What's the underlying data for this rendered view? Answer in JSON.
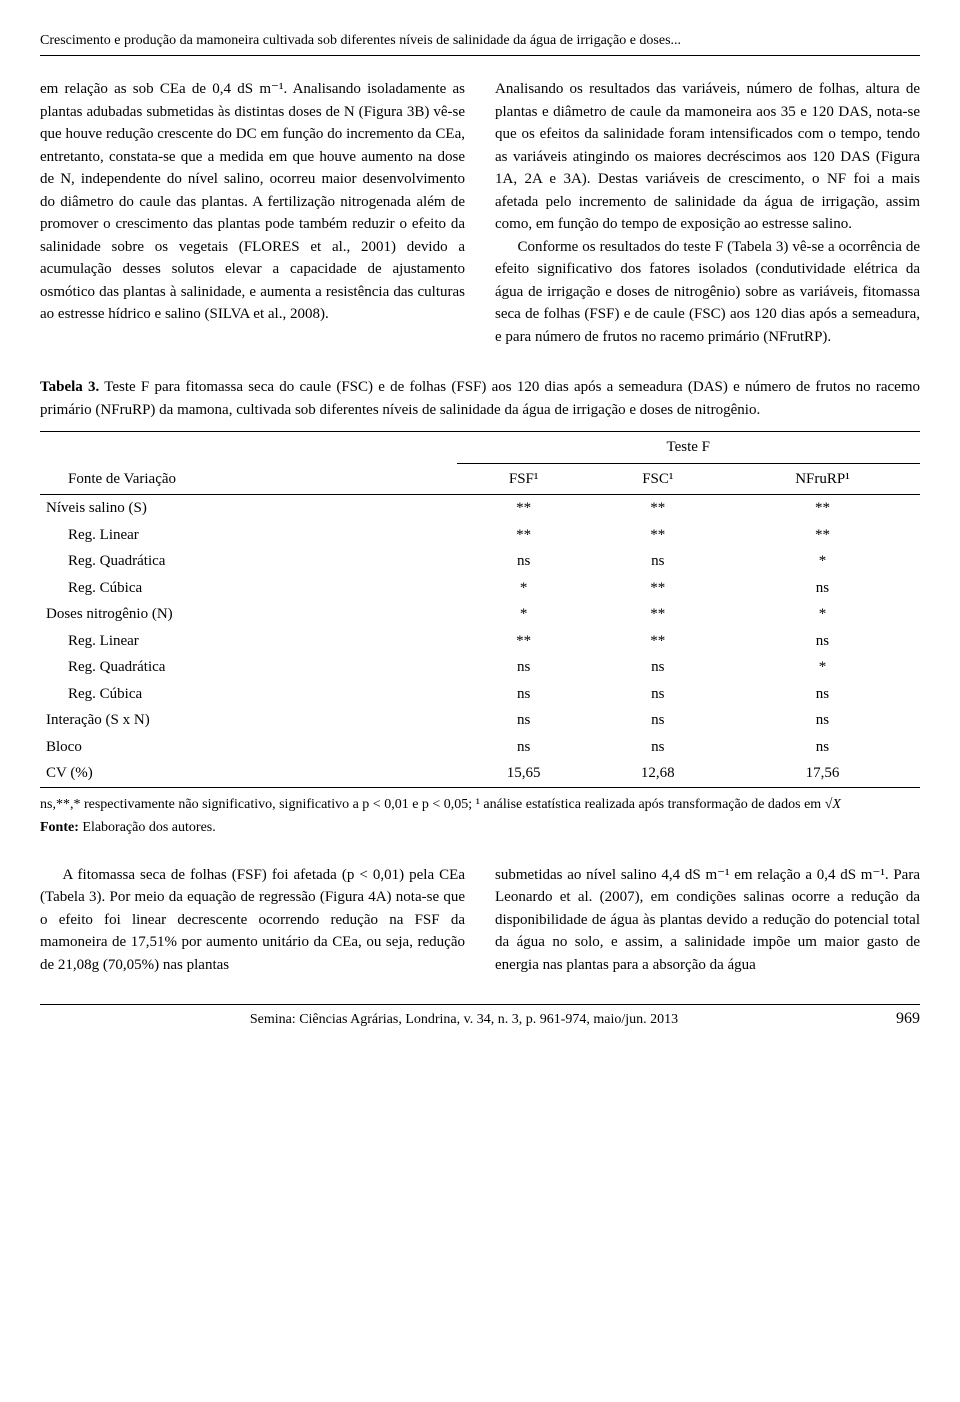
{
  "running_header": "Crescimento e produção da mamoneira cultivada sob diferentes níveis de salinidade da água de irrigação e doses...",
  "columns": {
    "left": {
      "p1": "em relação as sob CEa de 0,4 dS m⁻¹. Analisando isoladamente as plantas adubadas submetidas às distintas doses de N (Figura 3B) vê-se que houve redução crescente do DC em função do incremento da CEa, entretanto, constata-se que a medida em que houve aumento na dose de N, independente do nível salino, ocorreu maior desenvolvimento do diâmetro do caule das plantas. A fertilização nitrogenada além de promover o crescimento das plantas pode também reduzir o efeito da salinidade sobre os vegetais (FLORES et al., 2001) devido a acumulação desses solutos elevar a capacidade de ajustamento osmótico das plantas à salinidade, e aumenta a resistência das culturas ao estresse hídrico e salino (SILVA et al., 2008)."
    },
    "right": {
      "p1": "Analisando os resultados das variáveis, número de folhas, altura de plantas e diâmetro de caule da mamoneira aos 35 e 120 DAS, nota-se que os efeitos da salinidade foram intensificados com o tempo, tendo as variáveis atingindo os maiores decréscimos aos 120 DAS (Figura 1A, 2A e 3A). Destas variáveis de crescimento, o NF foi a mais afetada pelo incremento de salinidade da água de irrigação, assim como, em função do tempo de exposição ao estresse salino.",
      "p2": "Conforme os resultados do teste F (Tabela 3) vê-se a ocorrência de efeito significativo dos fatores isolados (condutividade elétrica da água de irrigação e doses de nitrogênio) sobre as variáveis, fitomassa seca de folhas (FSF) e de caule (FSC) aos 120 dias após a semeadura, e para número de frutos no racemo primário (NFrutRP)."
    }
  },
  "table": {
    "caption_label": "Tabela 3.",
    "caption_text": " Teste F para fitomassa seca do caule (FSC) e de folhas (FSF) aos 120 dias após a semeadura (DAS) e número de frutos no racemo primário (NFruRP) da mamona, cultivada sob diferentes níveis de salinidade da água de irrigação e doses de nitrogênio.",
    "row_header": "Fonte de Variação",
    "span_header": "Teste F",
    "col_headers": [
      "FSF¹",
      "FSC¹",
      "NFruRP¹"
    ],
    "rows": [
      {
        "label": "Níveis salino (S)",
        "indent": false,
        "vals": [
          "**",
          "**",
          "**"
        ]
      },
      {
        "label": "Reg. Linear",
        "indent": true,
        "vals": [
          "**",
          "**",
          "**"
        ]
      },
      {
        "label": "Reg. Quadrática",
        "indent": true,
        "vals": [
          "ns",
          "ns",
          "*"
        ]
      },
      {
        "label": "Reg. Cúbica",
        "indent": true,
        "vals": [
          "*",
          "**",
          "ns"
        ]
      },
      {
        "label": "Doses nitrogênio (N)",
        "indent": false,
        "vals": [
          "*",
          "**",
          "*"
        ]
      },
      {
        "label": "Reg. Linear",
        "indent": true,
        "vals": [
          "**",
          "**",
          "ns"
        ]
      },
      {
        "label": "Reg. Quadrática",
        "indent": true,
        "vals": [
          "ns",
          "ns",
          "*"
        ]
      },
      {
        "label": "Reg. Cúbica",
        "indent": true,
        "vals": [
          "ns",
          "ns",
          "ns"
        ]
      },
      {
        "label": "Interação (S x N)",
        "indent": false,
        "vals": [
          "ns",
          "ns",
          "ns"
        ]
      },
      {
        "label": "Bloco",
        "indent": false,
        "vals": [
          "ns",
          "ns",
          "ns"
        ]
      },
      {
        "label": "CV (%)",
        "indent": false,
        "vals": [
          "15,65",
          "12,68",
          "17,56"
        ]
      }
    ],
    "footnote": "ns,**,* respectivamente não significativo, significativo a p < 0,01 e p < 0,05; ¹ análise estatística realizada após transformação de dados em ",
    "footnote_tail": "√X",
    "source_label": "Fonte:",
    "source_text": " Elaboração dos autores."
  },
  "columns2": {
    "left": {
      "p1": "A fitomassa seca de folhas (FSF) foi afetada (p < 0,01) pela CEa (Tabela 3). Por meio da equação de regressão (Figura 4A) nota-se que o efeito foi linear decrescente ocorrendo redução na FSF da mamoneira de 17,51% por aumento unitário da CEa, ou seja, redução de 21,08g (70,05%) nas plantas"
    },
    "right": {
      "p1": "submetidas ao nível salino 4,4 dS m⁻¹ em relação a 0,4 dS m⁻¹. Para Leonardo et al. (2007), em condições salinas ocorre a redução da disponibilidade de água às plantas devido a redução do potencial total da água no solo, e assim, a salinidade impõe um maior gasto de energia nas plantas para a absorção da água"
    }
  },
  "footer": {
    "journal": "Semina: Ciências Agrárias, Londrina, v. 34, n. 3, p. 961-974, maio/jun. 2013",
    "page": "969"
  }
}
